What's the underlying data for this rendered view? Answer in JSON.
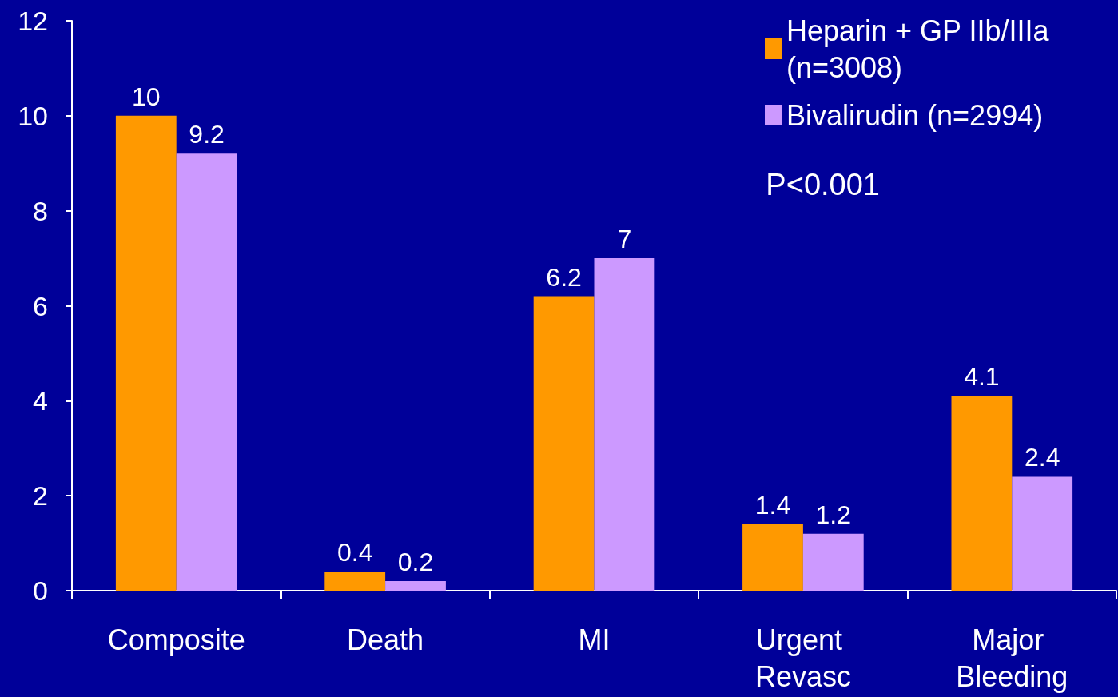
{
  "chart_data": {
    "type": "bar",
    "categories": [
      "Composite",
      "Death",
      "MI",
      "Urgent Revasc",
      "Major Bleeding"
    ],
    "series": [
      {
        "name": "Heparin + GP IIb/IIIa (n=3008)",
        "color": "#ff9900",
        "values": [
          10,
          0.4,
          6.2,
          1.4,
          4.1
        ]
      },
      {
        "name": "Bivalirudin (n=2994)",
        "color": "#cc99ff",
        "values": [
          9.2,
          0.2,
          7,
          1.2,
          2.4
        ]
      }
    ],
    "ylim": [
      0,
      12
    ],
    "yticks": [
      0,
      2,
      4,
      6,
      8,
      10,
      12
    ],
    "grid": false,
    "legend": "top right",
    "data_labels": true,
    "annotations": [
      {
        "text": "P<0.001"
      }
    ]
  }
}
